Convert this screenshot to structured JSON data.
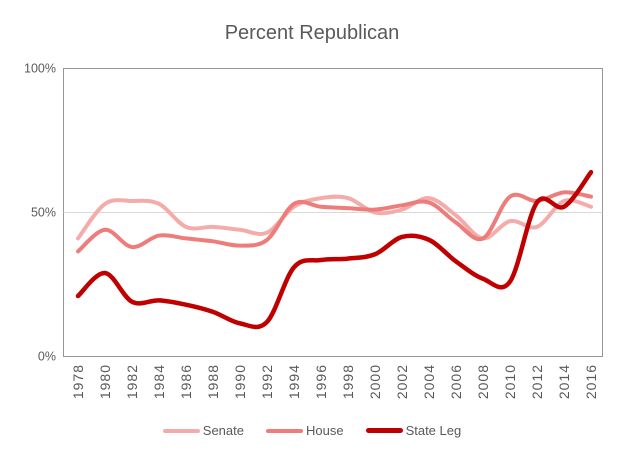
{
  "title": "Percent Republican",
  "chart_data": {
    "type": "line",
    "title": "Percent Republican",
    "smooth": true,
    "x": [
      1978,
      1980,
      1982,
      1984,
      1986,
      1988,
      1990,
      1992,
      1994,
      1996,
      1998,
      2000,
      2002,
      2004,
      2006,
      2008,
      2010,
      2012,
      2014,
      2016
    ],
    "series": [
      {
        "name": "Senate",
        "color": "#F4ACAA",
        "stroke_width": 4,
        "values": [
          41,
          53,
          54,
          53,
          45,
          45,
          44,
          43,
          52,
          55,
          55,
          50,
          51,
          55,
          49,
          41,
          47,
          45,
          54,
          52
        ]
      },
      {
        "name": "House",
        "color": "#EC7D7B",
        "stroke_width": 4,
        "values": [
          36.5,
          44,
          38,
          42,
          41,
          40,
          38.5,
          40.5,
          53,
          52,
          51.5,
          51,
          52.5,
          53.5,
          46.5,
          41,
          55.5,
          54,
          57,
          55.5
        ]
      },
      {
        "name": "State Leg",
        "color": "#C00000",
        "stroke_width": 4.5,
        "values": [
          21,
          29,
          19,
          19.5,
          18,
          15.5,
          11.5,
          12,
          31,
          33.5,
          34,
          35.5,
          41.5,
          40.5,
          33,
          27,
          26,
          53.5,
          52,
          64
        ]
      }
    ],
    "ylim": [
      0,
      100
    ],
    "yticks": [
      {
        "value": 0,
        "label": "0%"
      },
      {
        "value": 50,
        "label": "50%"
      },
      {
        "value": 100,
        "label": "100%"
      }
    ],
    "gridlines": [
      50
    ],
    "legend_position": "bottom",
    "text_color": "#595959",
    "gridline_color": "#D9D9D9",
    "border_color": "#969696"
  }
}
